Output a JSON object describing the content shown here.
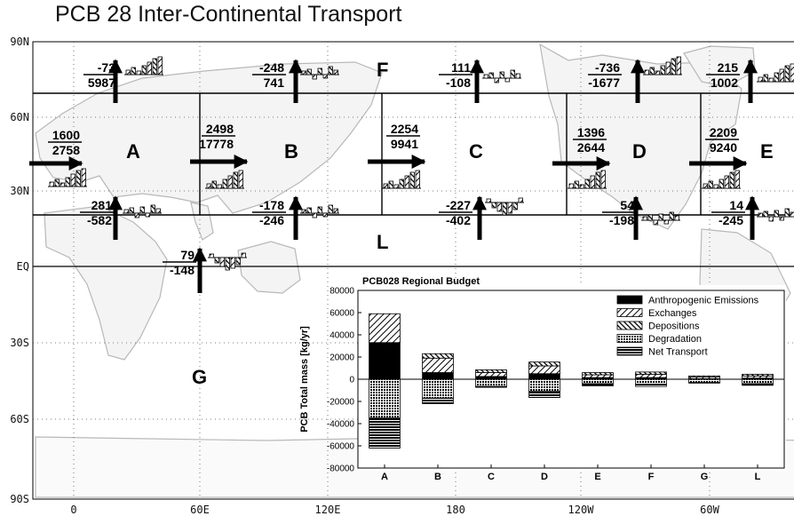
{
  "title": "PCB 28 Inter-Continental Transport",
  "map": {
    "lat_labels": [
      "90N",
      "60N",
      "30N",
      "EQ",
      "30S",
      "60S",
      "90S"
    ],
    "lon_labels": [
      "0",
      "60E",
      "120E",
      "180",
      "120W",
      "60W"
    ]
  },
  "regions": [
    {
      "id": "A",
      "label": "A"
    },
    {
      "id": "B",
      "label": "B"
    },
    {
      "id": "C",
      "label": "C"
    },
    {
      "id": "D",
      "label": "D"
    },
    {
      "id": "E",
      "label": "E"
    },
    {
      "id": "F",
      "label": "F"
    },
    {
      "id": "L",
      "label": "L"
    },
    {
      "id": "G",
      "label": "G"
    }
  ],
  "fluxes": [
    {
      "id": "A-north",
      "top": "-73",
      "bottom": "5987"
    },
    {
      "id": "B-north",
      "top": "-248",
      "bottom": "741"
    },
    {
      "id": "C-north",
      "top": "111",
      "bottom": "-108"
    },
    {
      "id": "D-north",
      "top": "-736",
      "bottom": "-1677"
    },
    {
      "id": "E-north",
      "top": "215",
      "bottom": "1002"
    },
    {
      "id": "A-west",
      "top": "1600",
      "bottom": "2758"
    },
    {
      "id": "B-west",
      "top": "2498",
      "bottom": "17778"
    },
    {
      "id": "C-west",
      "top": "2254",
      "bottom": "9941"
    },
    {
      "id": "D-west",
      "top": "1396",
      "bottom": "2644"
    },
    {
      "id": "E-west",
      "top": "2209",
      "bottom": "9240"
    },
    {
      "id": "A-south",
      "top": "281",
      "bottom": "-582"
    },
    {
      "id": "B-south",
      "top": "-178",
      "bottom": "-246"
    },
    {
      "id": "C-south",
      "top": "-227",
      "bottom": "-402"
    },
    {
      "id": "D-south",
      "top": "54",
      "bottom": "-198"
    },
    {
      "id": "E-south",
      "top": "14",
      "bottom": "-245"
    },
    {
      "id": "L-south",
      "top": "79",
      "bottom": "-148"
    }
  ],
  "chart_data": {
    "type": "bar",
    "title": "PCB028 Regional Budget",
    "ylabel": "PCB Total mass [kg/yr]",
    "xlabel": "",
    "ylim": [
      -80000,
      80000
    ],
    "y_ticks": [
      80000,
      60000,
      40000,
      20000,
      0,
      -20000,
      -40000,
      -60000,
      -80000
    ],
    "legend_position": "top-right",
    "categories": [
      "A",
      "B",
      "C",
      "D",
      "E",
      "F",
      "G",
      "L"
    ],
    "series": [
      {
        "name": "Anthropogenic Emissions",
        "pattern": "solid",
        "values": [
          33000,
          6000,
          2500,
          5000,
          1500,
          1500,
          500,
          1000
        ]
      },
      {
        "name": "Exchanges",
        "pattern": "diagonal",
        "values": [
          26000,
          13000,
          3500,
          7000,
          2500,
          3000,
          1500,
          2000
        ]
      },
      {
        "name": "Depositions",
        "pattern": "hatch",
        "values": [
          0,
          4000,
          2500,
          3500,
          2000,
          2000,
          1000,
          1500
        ]
      },
      {
        "name": "Degradation",
        "pattern": "dots",
        "values": [
          -35000,
          -17000,
          -6500,
          -11000,
          -4000,
          -4500,
          -3000,
          -4000
        ]
      },
      {
        "name": "Net Transport",
        "pattern": "lines",
        "values": [
          -27000,
          -5000,
          -800,
          -5500,
          -2000,
          -2000,
          -500,
          -1500
        ]
      }
    ]
  }
}
